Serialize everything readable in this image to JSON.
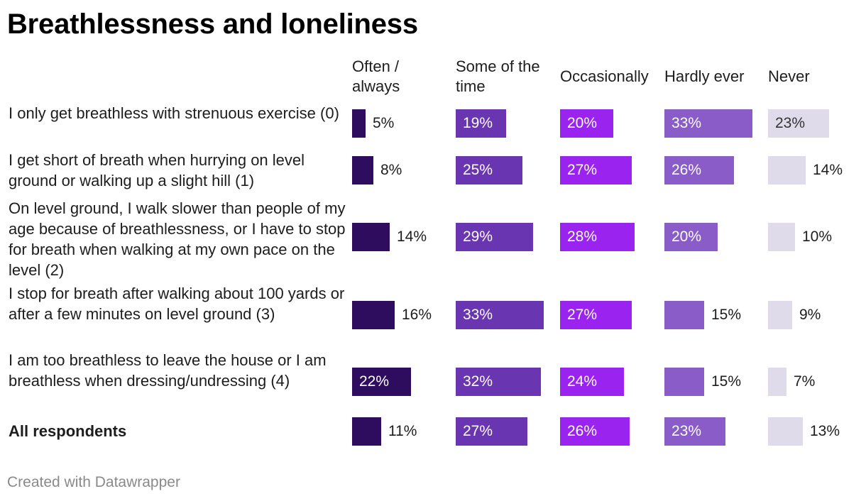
{
  "title": "Breathlessness and loneliness",
  "footer": "Created with Datawrapper",
  "chart_data": {
    "type": "bar",
    "columns": [
      {
        "name": "Often / always",
        "color": "#2e0d5e"
      },
      {
        "name": "Some of the time",
        "color": "#6a35b0"
      },
      {
        "name": "Occasionally",
        "color": "#9a23f0"
      },
      {
        "name": "Hardly ever",
        "color": "#8a5cc7"
      },
      {
        "name": "Never",
        "color": "#e0dbea"
      }
    ],
    "rows": [
      {
        "label": "I only get breathless with strenuous exercise (0)",
        "bold": false,
        "values": [
          5,
          19,
          20,
          33,
          23
        ],
        "labels": [
          "5%",
          "19%",
          "20%",
          "33%",
          "23%"
        ]
      },
      {
        "label": "I get short of breath when hurrying on level ground or walking up a slight hill (1)",
        "bold": false,
        "values": [
          8,
          25,
          27,
          26,
          14
        ],
        "labels": [
          "8%",
          "25%",
          "27%",
          "26%",
          "14%"
        ]
      },
      {
        "label": "On level ground, I walk slower than people of my age because of breathlessness, or I have to stop for breath when walking at my own pace on the level (2)",
        "bold": false,
        "values": [
          14,
          29,
          28,
          20,
          10
        ],
        "labels": [
          "14%",
          "29%",
          "28%",
          "20%",
          "10%"
        ]
      },
      {
        "label": "I stop for breath after walking about 100 yards or after a few minutes on level ground (3)",
        "bold": false,
        "values": [
          16,
          33,
          27,
          15,
          9
        ],
        "labels": [
          "16%",
          "33%",
          "27%",
          "15%",
          "9%"
        ]
      },
      {
        "label": "I am too breathless to leave the house or I am breathless when dressing/undressing (4)",
        "bold": false,
        "values": [
          22,
          32,
          24,
          15,
          7
        ],
        "labels": [
          "22%",
          "32%",
          "24%",
          "15%",
          "7%"
        ]
      },
      {
        "label": "All respondents",
        "bold": true,
        "values": [
          11,
          27,
          26,
          23,
          13
        ],
        "labels": [
          "11%",
          "27%",
          "26%",
          "23%",
          "13%"
        ]
      }
    ],
    "xlim": [
      0,
      33
    ],
    "grid": false
  }
}
